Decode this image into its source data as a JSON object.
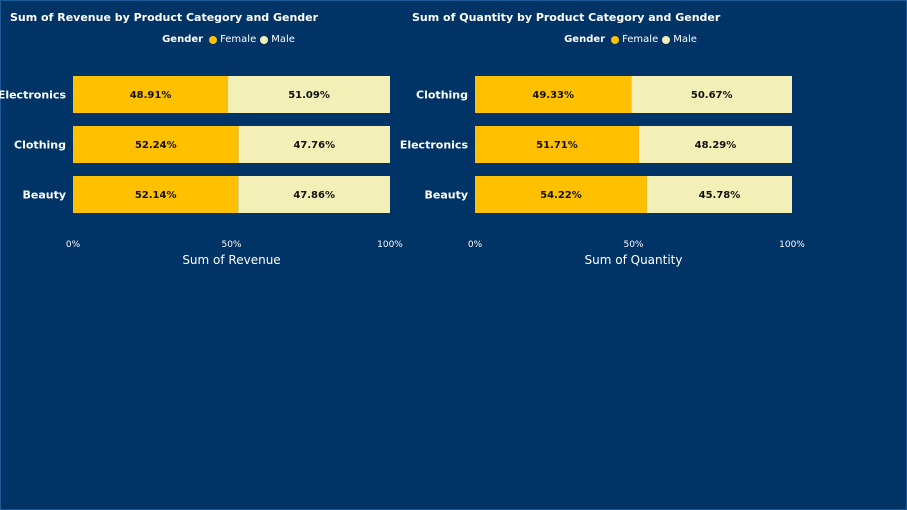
{
  "colors": {
    "background": "#003366",
    "female": "#FFC000",
    "male": "#F2F0B6"
  },
  "chart_data": [
    {
      "type": "bar",
      "orientation": "horizontal",
      "stacked": "100%",
      "title": "Sum of Revenue by Product Category and Gender",
      "legend_title": "Gender",
      "legend_position": "top-center",
      "categories": [
        "Electronics",
        "Clothing",
        "Beauty"
      ],
      "series": [
        {
          "name": "Female",
          "values": [
            48.91,
            52.24,
            52.14
          ],
          "labels": [
            "48.91%",
            "52.24%",
            "52.14%"
          ]
        },
        {
          "name": "Male",
          "values": [
            51.09,
            47.76,
            47.86
          ],
          "labels": [
            "51.09%",
            "47.76%",
            "47.86%"
          ]
        }
      ],
      "xlabel": "Sum of Revenue",
      "xlim": [
        0,
        100
      ],
      "ticks": [
        "0%",
        "50%",
        "100%"
      ],
      "grid": false
    },
    {
      "type": "bar",
      "orientation": "horizontal",
      "stacked": "100%",
      "title": "Sum of Quantity by Product Category and Gender",
      "legend_title": "Gender",
      "legend_position": "top-center",
      "categories": [
        "Clothing",
        "Electronics",
        "Beauty"
      ],
      "series": [
        {
          "name": "Female",
          "values": [
            49.33,
            51.71,
            54.22
          ],
          "labels": [
            "49.33%",
            "51.71%",
            "54.22%"
          ]
        },
        {
          "name": "Male",
          "values": [
            50.67,
            48.29,
            45.78
          ],
          "labels": [
            "50.67%",
            "48.29%",
            "45.78%"
          ]
        }
      ],
      "xlabel": "Sum of Quantity",
      "xlim": [
        0,
        100
      ],
      "ticks": [
        "0%",
        "50%",
        "100%"
      ],
      "grid": false
    }
  ]
}
